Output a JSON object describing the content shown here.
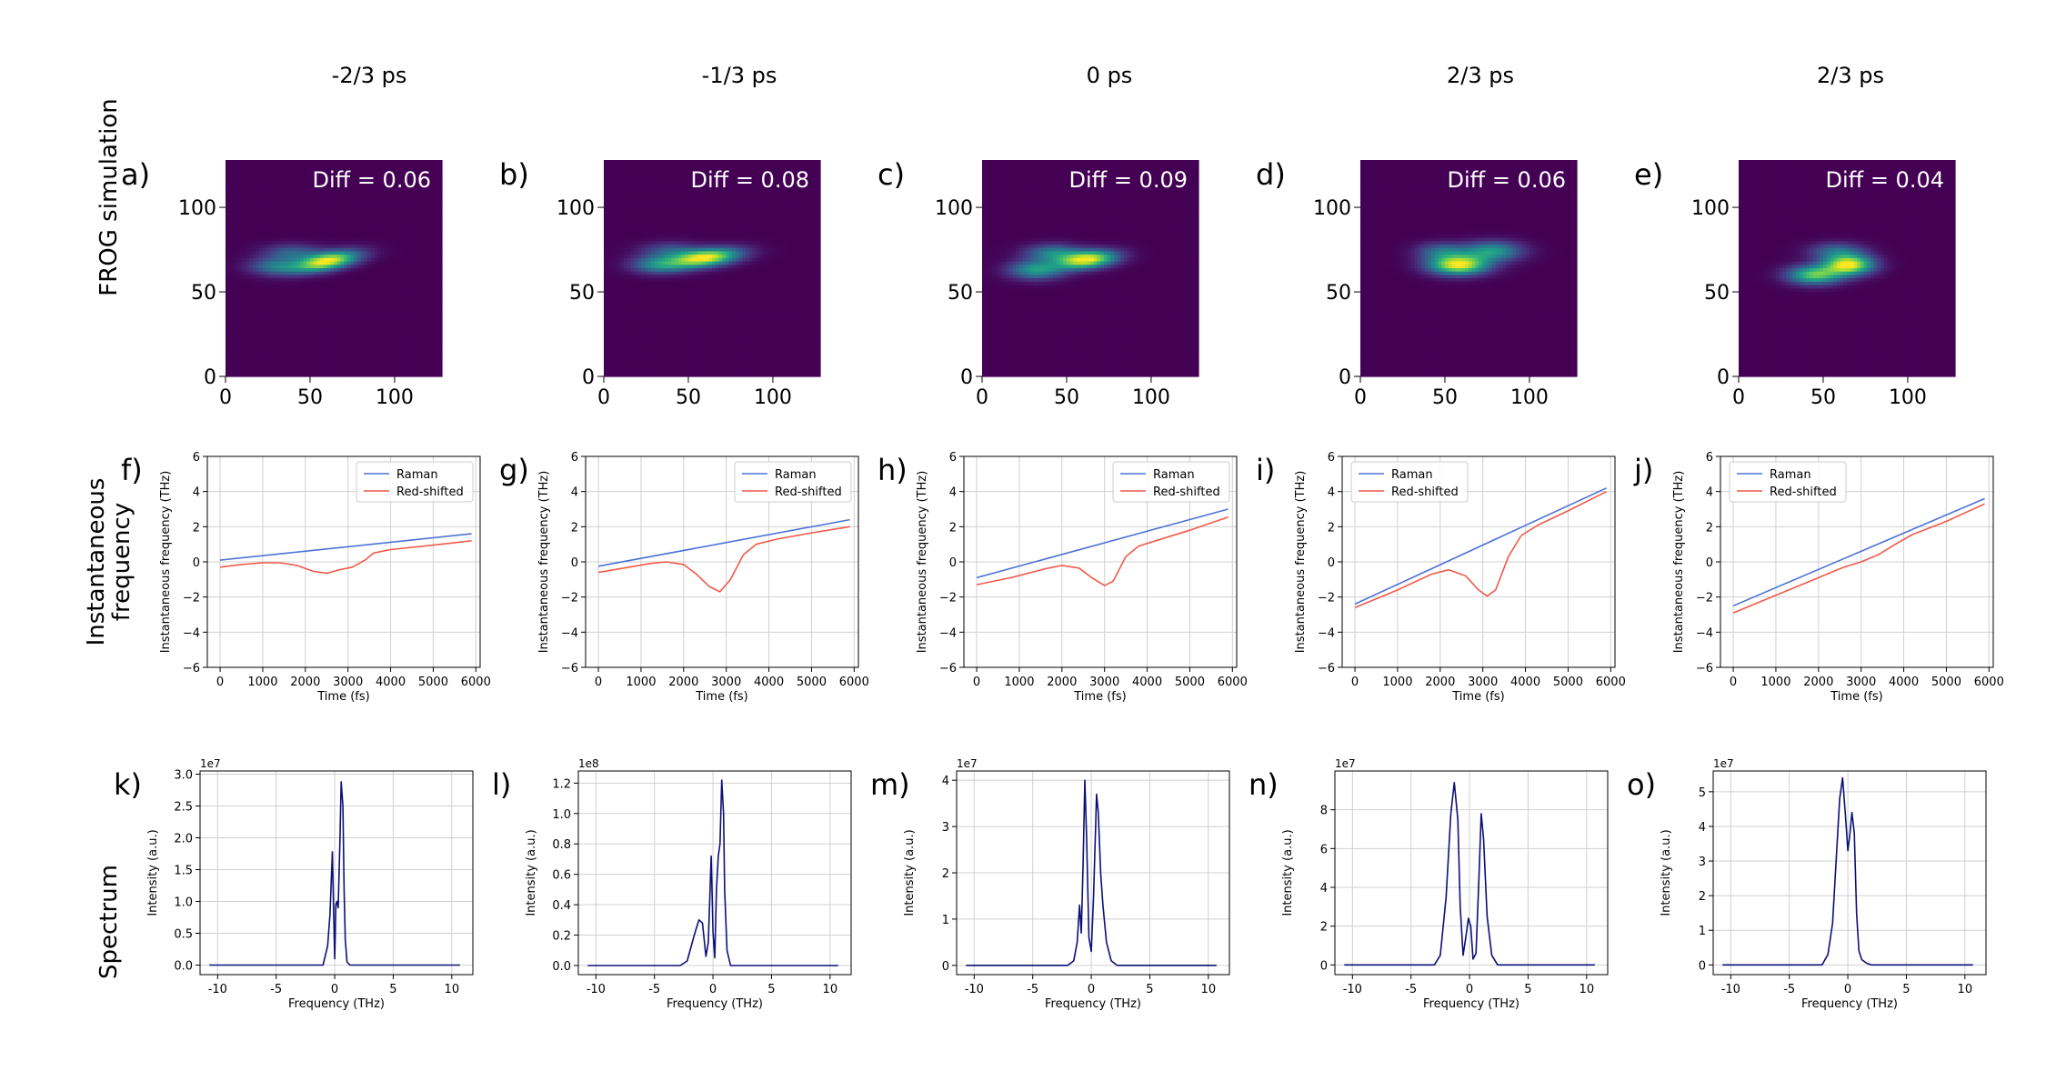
{
  "figure": {
    "columns": [
      "-2/3 ps",
      "-1/3 ps",
      "0 ps",
      "2/3 ps",
      "2/3 ps"
    ],
    "row_labels": [
      [
        "FROG simulation"
      ],
      [
        "Instantaneous",
        "frequency"
      ],
      [
        "Spectrum"
      ]
    ],
    "colors": {
      "viridis": [
        "#440154",
        "#482878",
        "#3e4989",
        "#31688e",
        "#26828e",
        "#1f9e89",
        "#35b779",
        "#6ece58",
        "#b5de2b",
        "#fde725"
      ],
      "raman": "#4c72d6",
      "red_shifted": "#f15a4a",
      "spectrum": "#0b1075",
      "grid": "#d0d0d0"
    }
  },
  "chart_data": [
    {
      "type": "heatmap",
      "panel": "a)",
      "title": "Diff = 0.06",
      "xlim": [
        0,
        128
      ],
      "ylim": [
        0,
        128
      ],
      "xticks": [
        0,
        50,
        100
      ],
      "yticks": [
        0,
        50,
        100
      ],
      "blobs": [
        {
          "x": 60,
          "y": 68,
          "sx": 13,
          "sy": 3.5,
          "a": 1.0,
          "rot": 0.18
        },
        {
          "x": 30,
          "y": 65,
          "sx": 11,
          "sy": 3.5,
          "a": 0.4,
          "rot": 0.0
        },
        {
          "x": 40,
          "y": 73,
          "sx": 12,
          "sy": 3.5,
          "a": 0.32,
          "rot": 0.0
        }
      ]
    },
    {
      "type": "heatmap",
      "panel": "b)",
      "title": "Diff = 0.08",
      "xlim": [
        0,
        128
      ],
      "ylim": [
        0,
        128
      ],
      "xticks": [
        0,
        50,
        100
      ],
      "yticks": [
        0,
        50,
        100
      ],
      "blobs": [
        {
          "x": 60,
          "y": 70,
          "sx": 14,
          "sy": 3.5,
          "a": 1.0,
          "rot": 0.12
        },
        {
          "x": 32,
          "y": 66,
          "sx": 11,
          "sy": 3.5,
          "a": 0.45,
          "rot": 0.0
        },
        {
          "x": 40,
          "y": 74,
          "sx": 12,
          "sy": 3.5,
          "a": 0.3,
          "rot": 0.0
        }
      ]
    },
    {
      "type": "heatmap",
      "panel": "c)",
      "title": "Diff = 0.09",
      "xlim": [
        0,
        128
      ],
      "ylim": [
        0,
        128
      ],
      "xticks": [
        0,
        50,
        100
      ],
      "yticks": [
        0,
        50,
        100
      ],
      "blobs": [
        {
          "x": 62,
          "y": 69,
          "sx": 12,
          "sy": 3.5,
          "a": 1.0,
          "rot": 0.1
        },
        {
          "x": 32,
          "y": 63,
          "sx": 11,
          "sy": 3.8,
          "a": 0.55,
          "rot": 0.0
        },
        {
          "x": 42,
          "y": 73,
          "sx": 11,
          "sy": 3.5,
          "a": 0.45,
          "rot": 0.0
        }
      ]
    },
    {
      "type": "heatmap",
      "panel": "d)",
      "title": "Diff = 0.06",
      "xlim": [
        0,
        128
      ],
      "ylim": [
        0,
        128
      ],
      "xticks": [
        0,
        50,
        100
      ],
      "yticks": [
        0,
        50,
        100
      ],
      "blobs": [
        {
          "x": 58,
          "y": 66,
          "sx": 12,
          "sy": 4,
          "a": 1.0,
          "rot": 0.0
        },
        {
          "x": 78,
          "y": 74,
          "sx": 12,
          "sy": 4,
          "a": 0.55,
          "rot": 0.0
        },
        {
          "x": 48,
          "y": 74,
          "sx": 10,
          "sy": 3.5,
          "a": 0.35,
          "rot": 0.0
        }
      ]
    },
    {
      "type": "heatmap",
      "panel": "e)",
      "title": "Diff = 0.04",
      "xlim": [
        0,
        128
      ],
      "ylim": [
        0,
        128
      ],
      "xticks": [
        0,
        50,
        100
      ],
      "yticks": [
        0,
        50,
        100
      ],
      "blobs": [
        {
          "x": 65,
          "y": 66,
          "sx": 10,
          "sy": 4,
          "a": 1.0,
          "rot": 0.0
        },
        {
          "x": 45,
          "y": 60,
          "sx": 11,
          "sy": 3.8,
          "a": 0.75,
          "rot": 0.0
        },
        {
          "x": 58,
          "y": 74,
          "sx": 11,
          "sy": 3.5,
          "a": 0.35,
          "rot": 0.0
        }
      ]
    },
    {
      "type": "line",
      "panel": "f)",
      "xlabel": "Time (fs)",
      "ylabel": "Instantaneous frequency (THz)",
      "xlim": [
        -300,
        6100
      ],
      "ylim": [
        -6,
        6
      ],
      "xticks": [
        0,
        1000,
        2000,
        3000,
        4000,
        5000,
        6000
      ],
      "yticks": [
        -6,
        -4,
        -2,
        0,
        2,
        4,
        6
      ],
      "legend": "top-right",
      "series": [
        {
          "name": "Raman",
          "x": [
            0,
            5900
          ],
          "y": [
            0.1,
            1.6
          ]
        },
        {
          "name": "Red-shifted",
          "x": [
            0,
            500,
            1000,
            1400,
            1800,
            2200,
            2500,
            2800,
            3100,
            3400,
            3600,
            4000,
            5000,
            5900
          ],
          "y": [
            -0.3,
            -0.15,
            -0.05,
            -0.05,
            -0.2,
            -0.55,
            -0.65,
            -0.45,
            -0.3,
            0.1,
            0.5,
            0.7,
            0.95,
            1.2
          ]
        }
      ]
    },
    {
      "type": "line",
      "panel": "g)",
      "xlabel": "Time (fs)",
      "ylabel": "Instantaneous frequency (THz)",
      "xlim": [
        -300,
        6100
      ],
      "ylim": [
        -6,
        6
      ],
      "xticks": [
        0,
        1000,
        2000,
        3000,
        4000,
        5000,
        6000
      ],
      "yticks": [
        -6,
        -4,
        -2,
        0,
        2,
        4,
        6
      ],
      "legend": "top-right",
      "series": [
        {
          "name": "Raman",
          "x": [
            0,
            5900
          ],
          "y": [
            -0.25,
            2.4
          ]
        },
        {
          "name": "Red-shifted",
          "x": [
            0,
            600,
            1200,
            1600,
            2000,
            2300,
            2600,
            2850,
            3100,
            3400,
            3700,
            4200,
            5000,
            5900
          ],
          "y": [
            -0.6,
            -0.35,
            -0.1,
            0.0,
            -0.15,
            -0.7,
            -1.4,
            -1.7,
            -1.0,
            0.4,
            1.0,
            1.3,
            1.65,
            2.0
          ]
        }
      ]
    },
    {
      "type": "line",
      "panel": "h)",
      "xlabel": "Time (fs)",
      "ylabel": "Instantaneous frequency (THz)",
      "xlim": [
        -300,
        6100
      ],
      "ylim": [
        -6,
        6
      ],
      "xticks": [
        0,
        1000,
        2000,
        3000,
        4000,
        5000,
        6000
      ],
      "yticks": [
        -6,
        -4,
        -2,
        0,
        2,
        4,
        6
      ],
      "legend": "top-right",
      "series": [
        {
          "name": "Raman",
          "x": [
            0,
            5900
          ],
          "y": [
            -0.9,
            3.0
          ]
        },
        {
          "name": "Red-shifted",
          "x": [
            0,
            800,
            1600,
            2000,
            2400,
            2700,
            3000,
            3200,
            3500,
            3800,
            4200,
            5000,
            5900
          ],
          "y": [
            -1.3,
            -0.9,
            -0.4,
            -0.2,
            -0.35,
            -0.9,
            -1.35,
            -1.1,
            0.3,
            0.9,
            1.2,
            1.8,
            2.55
          ]
        }
      ]
    },
    {
      "type": "line",
      "panel": "i)",
      "xlabel": "Time (fs)",
      "ylabel": "Instantaneous frequency (THz)",
      "xlim": [
        -300,
        6100
      ],
      "ylim": [
        -6,
        6
      ],
      "xticks": [
        0,
        1000,
        2000,
        3000,
        4000,
        5000,
        6000
      ],
      "yticks": [
        -6,
        -4,
        -2,
        0,
        2,
        4,
        6
      ],
      "legend": "top-left",
      "series": [
        {
          "name": "Raman",
          "x": [
            0,
            5900
          ],
          "y": [
            -2.4,
            4.2
          ]
        },
        {
          "name": "Red-shifted",
          "x": [
            0,
            1000,
            1800,
            2200,
            2600,
            2900,
            3100,
            3300,
            3600,
            3900,
            4300,
            5000,
            5900
          ],
          "y": [
            -2.6,
            -1.6,
            -0.7,
            -0.45,
            -0.8,
            -1.6,
            -1.95,
            -1.6,
            0.3,
            1.5,
            2.1,
            2.9,
            4.0
          ]
        }
      ]
    },
    {
      "type": "line",
      "panel": "j)",
      "xlabel": "Time (fs)",
      "ylabel": "Instantaneous frequency (THz)",
      "xlim": [
        -300,
        6100
      ],
      "ylim": [
        -6,
        6
      ],
      "xticks": [
        0,
        1000,
        2000,
        3000,
        4000,
        5000,
        6000
      ],
      "yticks": [
        -6,
        -4,
        -2,
        0,
        2,
        4,
        6
      ],
      "legend": "top-left",
      "series": [
        {
          "name": "Raman",
          "x": [
            0,
            5900
          ],
          "y": [
            -2.5,
            3.6
          ]
        },
        {
          "name": "Red-shifted",
          "x": [
            0,
            1000,
            2000,
            2600,
            3000,
            3400,
            3800,
            4200,
            5000,
            5900
          ],
          "y": [
            -2.9,
            -1.9,
            -0.9,
            -0.3,
            0.0,
            0.4,
            1.0,
            1.55,
            2.3,
            3.3
          ]
        }
      ]
    },
    {
      "type": "line",
      "panel": "k)",
      "xlabel": "Frequency (THz)",
      "ylabel": "Intensity (a.u.)",
      "offset_text": "1e7",
      "xlim": [
        -11.5,
        11.8
      ],
      "ylim": [
        -0.15,
        3.05
      ],
      "xticks": [
        -10,
        -5,
        0,
        5,
        10
      ],
      "yticks": [
        0.0,
        0.5,
        1.0,
        1.5,
        2.0,
        2.5,
        3.0
      ],
      "ytick_labels": [
        "0.0",
        "0.5",
        "1.0",
        "1.5",
        "2.0",
        "2.5",
        "3.0"
      ],
      "series": [
        {
          "name": "",
          "x": [
            -10.7,
            -1.0,
            -0.6,
            -0.4,
            -0.2,
            -0.1,
            0.0,
            0.1,
            0.2,
            0.3,
            0.45,
            0.55,
            0.7,
            0.8,
            0.9,
            1.05,
            1.3,
            10.7
          ],
          "y": [
            0.0,
            0.0,
            0.3,
            0.8,
            1.78,
            0.9,
            0.1,
            0.95,
            1.0,
            0.9,
            2.0,
            2.88,
            2.5,
            1.2,
            0.4,
            0.05,
            0.0,
            0.0
          ]
        }
      ]
    },
    {
      "type": "line",
      "panel": "l)",
      "xlabel": "Frequency (THz)",
      "ylabel": "Intensity (a.u.)",
      "offset_text": "1e8",
      "xlim": [
        -11.5,
        11.8
      ],
      "ylim": [
        -0.06,
        1.28
      ],
      "xticks": [
        -10,
        -5,
        0,
        5,
        10
      ],
      "yticks": [
        0.0,
        0.2,
        0.4,
        0.6,
        0.8,
        1.0,
        1.2
      ],
      "ytick_labels": [
        "0.0",
        "0.2",
        "0.4",
        "0.6",
        "0.8",
        "1.0",
        "1.2"
      ],
      "series": [
        {
          "name": "",
          "x": [
            -10.7,
            -2.8,
            -2.2,
            -1.6,
            -1.2,
            -0.9,
            -0.6,
            -0.4,
            -0.15,
            0.0,
            0.15,
            0.3,
            0.45,
            0.6,
            0.75,
            0.9,
            1.0,
            1.2,
            1.5,
            10.7
          ],
          "y": [
            0.0,
            0.0,
            0.03,
            0.2,
            0.3,
            0.28,
            0.06,
            0.15,
            0.72,
            0.22,
            0.05,
            0.5,
            0.72,
            0.8,
            1.22,
            1.0,
            0.5,
            0.1,
            0.0,
            0.0
          ]
        }
      ]
    },
    {
      "type": "line",
      "panel": "m)",
      "xlabel": "Frequency (THz)",
      "ylabel": "Intensity (a.u.)",
      "offset_text": "1e7",
      "xlim": [
        -11.5,
        11.8
      ],
      "ylim": [
        -0.2,
        4.2
      ],
      "xticks": [
        -10,
        -5,
        0,
        5,
        10
      ],
      "yticks": [
        0,
        1,
        2,
        3,
        4
      ],
      "ytick_labels": [
        "0",
        "1",
        "2",
        "3",
        "4"
      ],
      "series": [
        {
          "name": "",
          "x": [
            -10.7,
            -2.0,
            -1.5,
            -1.2,
            -1.0,
            -0.85,
            -0.7,
            -0.55,
            -0.4,
            -0.2,
            0.0,
            0.2,
            0.45,
            0.6,
            0.8,
            1.0,
            1.3,
            1.7,
            2.2,
            10.7
          ],
          "y": [
            0.0,
            0.0,
            0.1,
            0.5,
            1.3,
            0.7,
            2.2,
            4.0,
            2.8,
            0.6,
            0.3,
            1.5,
            3.7,
            3.3,
            2.0,
            1.3,
            0.5,
            0.1,
            0.0,
            0.0
          ]
        }
      ]
    },
    {
      "type": "line",
      "panel": "n)",
      "xlabel": "Frequency (THz)",
      "ylabel": "Intensity (a.u.)",
      "offset_text": "1e7",
      "xlim": [
        -11.5,
        11.8
      ],
      "ylim": [
        -0.5,
        10.0
      ],
      "xticks": [
        -10,
        -5,
        0,
        5,
        10
      ],
      "yticks": [
        0,
        2,
        4,
        6,
        8
      ],
      "ytick_labels": [
        "0",
        "2",
        "4",
        "6",
        "8"
      ],
      "series": [
        {
          "name": "",
          "x": [
            -10.7,
            -3.0,
            -2.5,
            -2.0,
            -1.6,
            -1.3,
            -1.0,
            -0.8,
            -0.55,
            -0.3,
            -0.1,
            0.1,
            0.3,
            0.55,
            0.8,
            1.0,
            1.2,
            1.5,
            1.9,
            2.4,
            10.7
          ],
          "y": [
            0.0,
            0.0,
            0.5,
            3.5,
            7.8,
            9.4,
            7.5,
            3.0,
            0.5,
            1.5,
            2.4,
            2.0,
            0.3,
            0.6,
            4.5,
            7.8,
            6.5,
            2.5,
            0.5,
            0.0,
            0.0
          ]
        }
      ]
    },
    {
      "type": "line",
      "panel": "o)",
      "xlabel": "Frequency (THz)",
      "ylabel": "Intensity (a.u.)",
      "offset_text": "1e7",
      "xlim": [
        -11.5,
        11.8
      ],
      "ylim": [
        -0.28,
        5.6
      ],
      "xticks": [
        -10,
        -5,
        0,
        5,
        10
      ],
      "yticks": [
        0,
        1,
        2,
        3,
        4,
        5
      ],
      "ytick_labels": [
        "0",
        "1",
        "2",
        "3",
        "4",
        "5"
      ],
      "series": [
        {
          "name": "",
          "x": [
            -10.7,
            -2.2,
            -1.7,
            -1.3,
            -1.0,
            -0.7,
            -0.45,
            -0.2,
            0.0,
            0.15,
            0.35,
            0.55,
            0.75,
            0.95,
            1.2,
            1.6,
            2.0,
            10.7
          ],
          "y": [
            0.0,
            0.0,
            0.3,
            1.2,
            3.0,
            4.8,
            5.4,
            4.3,
            3.3,
            3.7,
            4.4,
            3.8,
            1.5,
            0.4,
            0.15,
            0.05,
            0.0,
            0.0
          ]
        }
      ]
    }
  ]
}
